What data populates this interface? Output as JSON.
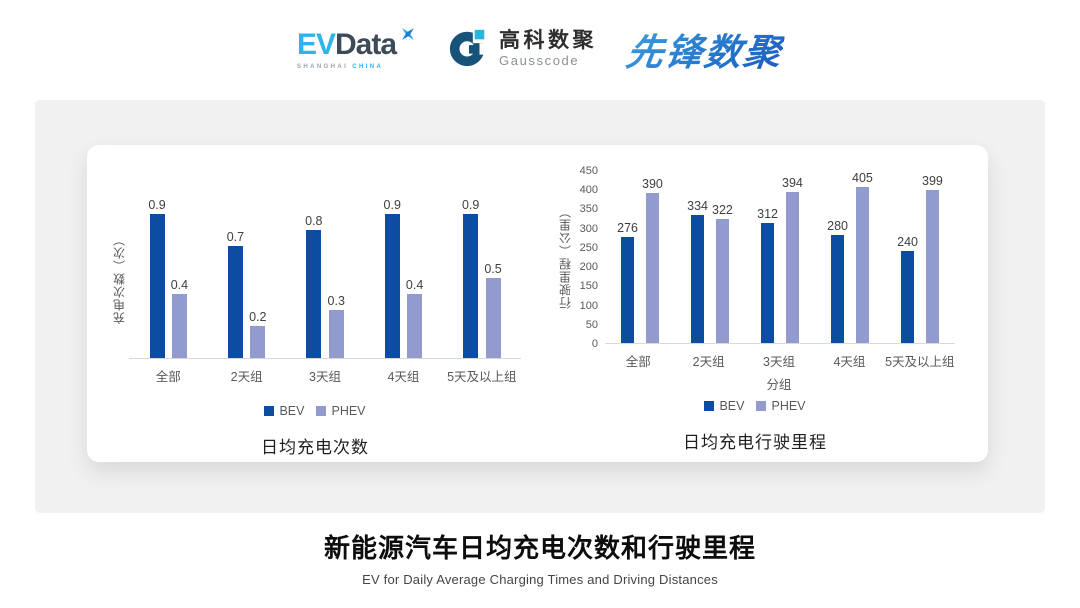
{
  "header": {
    "evdata": {
      "ev": "EV",
      "data": "Data",
      "sub_left": "SHANGHAI",
      "sub_right": "CHINA"
    },
    "gausscode": {
      "cn": "高科数聚",
      "en": "Gausscode"
    },
    "xianfeng": {
      "text": "先锋数聚"
    }
  },
  "colors": {
    "bev": "#0c4da2",
    "phev": "#919bce",
    "axis_text": "#595959",
    "value_text": "#404040",
    "baseline": "#d9d9d9",
    "panel_bg": "#f1f1f2"
  },
  "chart_data": [
    {
      "type": "bar",
      "title": "日均充电次数",
      "ylabel": "充电次数（次）",
      "xlabel": "",
      "categories": [
        "全部",
        "2天组",
        "3天组",
        "4天组",
        "5天及以上组"
      ],
      "series": [
        {
          "name": "BEV",
          "color": "#0c4da2",
          "values": [
            0.9,
            0.7,
            0.8,
            0.9,
            0.9
          ]
        },
        {
          "name": "PHEV",
          "color": "#919bce",
          "values": [
            0.4,
            0.2,
            0.3,
            0.4,
            0.5
          ]
        }
      ],
      "ylim": [
        0,
        1.0
      ],
      "yticks_shown": false,
      "value_labels": "one_decimal",
      "grid": false,
      "legend_position": "bottom"
    },
    {
      "type": "bar",
      "title": "日均充电行驶里程",
      "ylabel": "行驶里程（公里）",
      "xlabel": "分组",
      "categories": [
        "全部",
        "2天组",
        "3天组",
        "4天组",
        "5天及以上组"
      ],
      "series": [
        {
          "name": "BEV",
          "color": "#0c4da2",
          "values": [
            276,
            334,
            312,
            280,
            240
          ]
        },
        {
          "name": "PHEV",
          "color": "#919bce",
          "values": [
            390,
            322,
            394,
            405,
            399
          ]
        }
      ],
      "ylim": [
        0,
        450
      ],
      "ytick_step": 50,
      "yticks_shown": true,
      "value_labels": "integer",
      "grid": false,
      "legend_position": "bottom"
    }
  ],
  "footer": {
    "title": "新能源汽车日均充电次数和行驶里程",
    "subtitle": "EV for Daily Average Charging Times and Driving Distances"
  }
}
